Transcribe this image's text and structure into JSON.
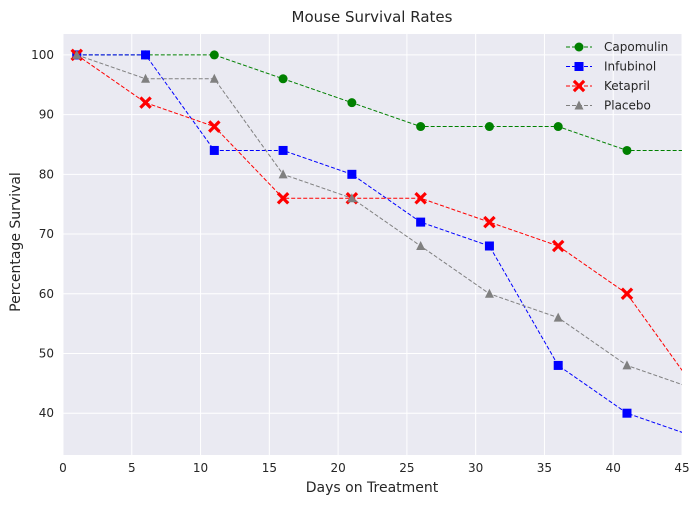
{
  "chart_data": {
    "type": "line",
    "title": "Mouse Survival Rates",
    "xlabel": "Days on Treatment",
    "ylabel": "Percentage Survival",
    "xlim": [
      0,
      45
    ],
    "ylim": [
      33,
      103.5
    ],
    "xticks": [
      0,
      5,
      10,
      15,
      20,
      25,
      30,
      35,
      40,
      45
    ],
    "yticks": [
      40,
      50,
      60,
      70,
      80,
      90,
      100
    ],
    "grid": true,
    "legend_position": "top-right",
    "x": [
      1,
      6,
      11,
      16,
      21,
      26,
      31,
      36,
      41,
      46
    ],
    "series": [
      {
        "name": "Capomulin",
        "color": "#008000",
        "marker": "circle",
        "values": [
          100,
          100,
          100,
          96,
          92,
          88,
          88,
          88,
          84,
          84
        ]
      },
      {
        "name": "Infubinol",
        "color": "#0000ff",
        "marker": "square",
        "values": [
          100,
          100,
          84,
          84,
          80,
          72,
          68,
          48,
          40,
          36
        ]
      },
      {
        "name": "Ketapril",
        "color": "#ff0000",
        "marker": "x",
        "values": [
          100,
          92,
          88,
          76,
          76,
          76,
          72,
          68,
          60,
          44
        ]
      },
      {
        "name": "Placebo",
        "color": "#808080",
        "marker": "triangle",
        "values": [
          100,
          96,
          96,
          80,
          76,
          68,
          60,
          56,
          48,
          44
        ]
      }
    ],
    "colors": {
      "plot_background": "#eaeaf2",
      "grid": "#ffffff",
      "text": "#262626"
    }
  }
}
